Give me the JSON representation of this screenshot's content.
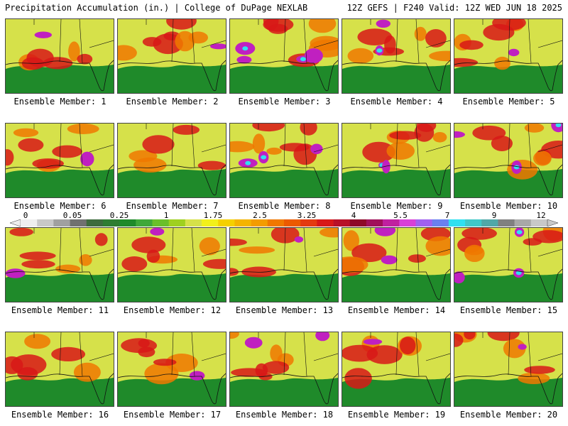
{
  "header": {
    "title_left": "Precipitation Accumulation (in.) | College of DuPage NEXLAB",
    "title_right": "12Z GEFS | F240 Valid: 12Z WED JUN 18 2025"
  },
  "colors": {
    "ocean_low": "#1f8a2a",
    "land_mid": "#e8e030",
    "heavy": "#d81818",
    "extreme": "#c020c0",
    "max": "#30e0f0"
  },
  "legend": {
    "tick_labels": [
      "0",
      "0.05",
      "0.25",
      "1",
      "1.75",
      "2.5",
      "3.25",
      "4",
      "5.5",
      "7",
      "9",
      "12"
    ],
    "colors": [
      "#eeeeee",
      "#c8c8c8",
      "#a0a0a0",
      "#707070",
      "#3d6b3d",
      "#2e7d32",
      "#1f8a2a",
      "#3fa83a",
      "#6abf2a",
      "#9fd020",
      "#d6e14a",
      "#f2f01a",
      "#f5d000",
      "#f4b400",
      "#f39c00",
      "#f07800",
      "#ec5a00",
      "#e43a10",
      "#d81818",
      "#b81028",
      "#8e0828",
      "#a0105a",
      "#c020a0",
      "#d840d8",
      "#a060f0",
      "#6a80f0",
      "#30e0f0",
      "#40c8c8",
      "#50a8a8",
      "#808080",
      "#a8a8a8",
      "#c8c8c8"
    ]
  },
  "members": [
    {
      "label": "Ensemble Member: 1",
      "heavy": 0.35,
      "extreme": 0.05
    },
    {
      "label": "Ensemble Member: 2",
      "heavy": 0.45,
      "extreme": 0.1
    },
    {
      "label": "Ensemble Member: 3",
      "heavy": 0.5,
      "extreme": 0.35
    },
    {
      "label": "Ensemble Member: 4",
      "heavy": 0.45,
      "extreme": 0.2
    },
    {
      "label": "Ensemble Member: 5",
      "heavy": 0.5,
      "extreme": 0.1
    },
    {
      "label": "Ensemble Member: 6",
      "heavy": 0.55,
      "extreme": 0.1
    },
    {
      "label": "Ensemble Member: 7",
      "heavy": 0.3,
      "extreme": 0.02
    },
    {
      "label": "Ensemble Member: 8",
      "heavy": 0.55,
      "extreme": 0.25
    },
    {
      "label": "Ensemble Member: 9",
      "heavy": 0.45,
      "extreme": 0.2
    },
    {
      "label": "Ensemble Member: 10",
      "heavy": 0.55,
      "extreme": 0.3
    },
    {
      "label": "Ensemble Member: 11",
      "heavy": 0.4,
      "extreme": 0.05
    },
    {
      "label": "Ensemble Member: 12",
      "heavy": 0.4,
      "extreme": 0.1
    },
    {
      "label": "Ensemble Member: 13",
      "heavy": 0.4,
      "extreme": 0.1
    },
    {
      "label": "Ensemble Member: 14",
      "heavy": 0.45,
      "extreme": 0.15
    },
    {
      "label": "Ensemble Member: 15",
      "heavy": 0.55,
      "extreme": 0.3
    },
    {
      "label": "Ensemble Member: 16",
      "heavy": 0.4,
      "extreme": 0.02
    },
    {
      "label": "Ensemble Member: 17",
      "heavy": 0.4,
      "extreme": 0.1
    },
    {
      "label": "Ensemble Member: 18",
      "heavy": 0.5,
      "extreme": 0.15
    },
    {
      "label": "Ensemble Member: 19",
      "heavy": 0.35,
      "extreme": 0.1
    },
    {
      "label": "Ensemble Member: 20",
      "heavy": 0.5,
      "extreme": 0.05
    }
  ]
}
